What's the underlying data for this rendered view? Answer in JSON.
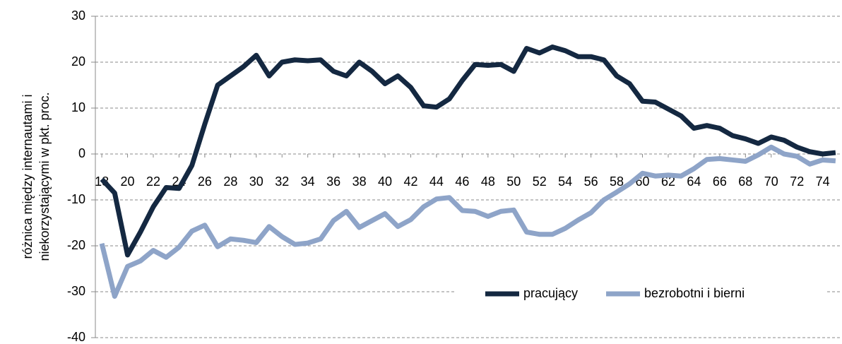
{
  "chart_data": {
    "type": "line",
    "ylabel": [
      "różnica między internautami i",
      "niekorzystającymi w pkt. proc."
    ],
    "x": [
      18,
      19,
      20,
      21,
      22,
      23,
      24,
      25,
      26,
      27,
      28,
      29,
      30,
      31,
      32,
      33,
      34,
      35,
      36,
      37,
      38,
      39,
      40,
      41,
      42,
      43,
      44,
      45,
      46,
      47,
      48,
      49,
      50,
      51,
      52,
      53,
      54,
      55,
      56,
      57,
      58,
      59,
      60,
      61,
      62,
      63,
      64,
      65,
      66,
      67,
      68,
      69,
      70,
      71,
      72,
      73,
      74,
      75
    ],
    "xlim": [
      17.5,
      75.5
    ],
    "xticks": [
      18,
      20,
      22,
      24,
      26,
      28,
      30,
      32,
      34,
      36,
      38,
      40,
      42,
      44,
      46,
      48,
      50,
      52,
      54,
      56,
      58,
      60,
      62,
      64,
      66,
      68,
      70,
      72,
      74
    ],
    "ylim": [
      -40,
      30
    ],
    "yticks": [
      -40,
      -30,
      -20,
      -10,
      0,
      10,
      20,
      30
    ],
    "grid": true,
    "legend": "bottom-right",
    "series": [
      {
        "name": "pracujący",
        "color": "#142841",
        "values": [
          -5.5,
          -8.5,
          -22,
          -17,
          -11.5,
          -7.3,
          -7.5,
          -2.5,
          6.5,
          15,
          17,
          19,
          21.5,
          17,
          20,
          20.5,
          20.3,
          20.5,
          18,
          17,
          20,
          18,
          15.3,
          17,
          14.5,
          10.5,
          10.2,
          12,
          16,
          19.5,
          19.3,
          19.5,
          18,
          23,
          22,
          23.3,
          22.5,
          21.2,
          21.2,
          20.5,
          17,
          15.3,
          11.5,
          11.3,
          9.8,
          8.3,
          5.6,
          6.2,
          5.6,
          4,
          3.3,
          2.3,
          3.7,
          3,
          1.5,
          0.5,
          0,
          0.3
        ]
      },
      {
        "name": "bezrobotni i bierni",
        "color": "#8ea4c8",
        "values": [
          -19.5,
          -31,
          -24.5,
          -23.3,
          -21,
          -22.5,
          -20.3,
          -16.8,
          -15.5,
          -20.2,
          -18.5,
          -18.8,
          -19.3,
          -15.8,
          -18,
          -19.7,
          -19.4,
          -18.5,
          -14.5,
          -12.5,
          -16,
          -14.5,
          -13,
          -15.8,
          -14.3,
          -11.5,
          -9.8,
          -9.5,
          -12.3,
          -12.5,
          -13.6,
          -12.5,
          -12.2,
          -17,
          -17.5,
          -17.5,
          -16.2,
          -14.4,
          -12.8,
          -10,
          -8.3,
          -6.5,
          -4.2,
          -4.8,
          -4.6,
          -4.8,
          -3.2,
          -1.2,
          -1,
          -1.3,
          -1.6,
          -0.2,
          1.5,
          0,
          -0.5,
          -2.2,
          -1.3,
          -1.5
        ]
      }
    ]
  }
}
